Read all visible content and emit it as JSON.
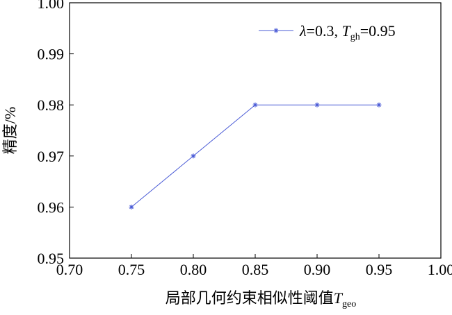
{
  "chart_data": {
    "type": "line",
    "xlabel_main": "局部几何约束相似性阈值",
    "xlabel_symbol": "T",
    "xlabel_subscript": "geo",
    "ylabel": "精度/%",
    "x": [
      0.75,
      0.8,
      0.85,
      0.9,
      0.95
    ],
    "series": [
      {
        "name": "λ=0.3, Tgh=0.95",
        "legend_lambda": "λ",
        "legend_mid": "=0.3, ",
        "legend_T": "T",
        "legend_sub": "gh",
        "legend_tail": "=0.95",
        "values": [
          0.96,
          0.97,
          0.98,
          0.98,
          0.98
        ],
        "color": "#4a5bd6",
        "marker": "asterisk"
      }
    ],
    "xlim": [
      0.7,
      1.0
    ],
    "ylim": [
      0.95,
      1.0
    ],
    "x_ticks": [
      "0.70",
      "0.75",
      "0.80",
      "0.85",
      "0.90",
      "0.95",
      "1.00"
    ],
    "y_ticks": [
      "0.95",
      "0.96",
      "0.97",
      "0.98",
      "0.99",
      "1.00"
    ],
    "grid": false,
    "legend_position": "top-right"
  }
}
